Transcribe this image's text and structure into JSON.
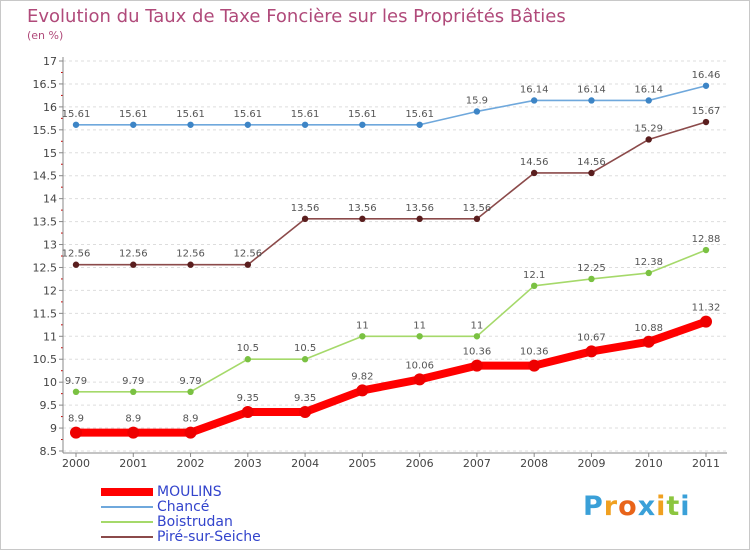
{
  "chart_data": {
    "type": "line",
    "title": "Evolution du Taux de Taxe Foncière sur les Propriétés Bâties",
    "unit_label": "(en %)",
    "xlabel": "",
    "ylabel": "",
    "categories": [
      "2000",
      "2001",
      "2002",
      "2003",
      "2004",
      "2005",
      "2006",
      "2007",
      "2008",
      "2009",
      "2010",
      "2011"
    ],
    "ylim": [
      8.5,
      17
    ],
    "yticks": [
      "8.5",
      "9",
      "9.5",
      "10",
      "10.5",
      "11",
      "11.5",
      "12",
      "12.5",
      "13",
      "13.5",
      "14",
      "14.5",
      "15",
      "15.5",
      "16",
      "16.5",
      "17"
    ],
    "grid": "horizontal dashed",
    "legend_position": "bottom-left",
    "series": [
      {
        "name": "MOULINS",
        "color": "#ff0000",
        "marker": "#ee0000",
        "bold": true,
        "values": [
          8.9,
          8.9,
          8.9,
          9.35,
          9.35,
          9.82,
          10.06,
          10.36,
          10.36,
          10.67,
          10.88,
          11.32
        ]
      },
      {
        "name": "Chancé",
        "color": "#6fa8dc",
        "marker": "#3d85c6",
        "bold": false,
        "values": [
          15.61,
          15.61,
          15.61,
          15.61,
          15.61,
          15.61,
          15.61,
          15.9,
          16.14,
          16.14,
          16.14,
          16.46
        ]
      },
      {
        "name": "Boistrudan",
        "color": "#a5d96a",
        "marker": "#7ac142",
        "bold": false,
        "values": [
          9.79,
          9.79,
          9.79,
          10.5,
          10.5,
          11,
          11,
          11,
          12.1,
          12.25,
          12.38,
          12.88
        ]
      },
      {
        "name": "Piré-sur-Seiche",
        "color": "#8b4a4a",
        "marker": "#5a1e1e",
        "bold": false,
        "values": [
          12.56,
          12.56,
          12.56,
          12.56,
          13.56,
          13.56,
          13.56,
          13.56,
          14.56,
          14.56,
          15.29,
          15.67
        ]
      }
    ]
  },
  "logo": {
    "letters": [
      {
        "ch": "P",
        "color": "#3aa0d8"
      },
      {
        "ch": "r",
        "color": "#f0a020"
      },
      {
        "ch": "o",
        "color": "#e8641a"
      },
      {
        "ch": "x",
        "color": "#3aa0d8"
      },
      {
        "ch": "i",
        "color": "#f0a020"
      },
      {
        "ch": "t",
        "color": "#8cc63f"
      },
      {
        "ch": "i",
        "color": "#3aa0d8"
      }
    ]
  }
}
